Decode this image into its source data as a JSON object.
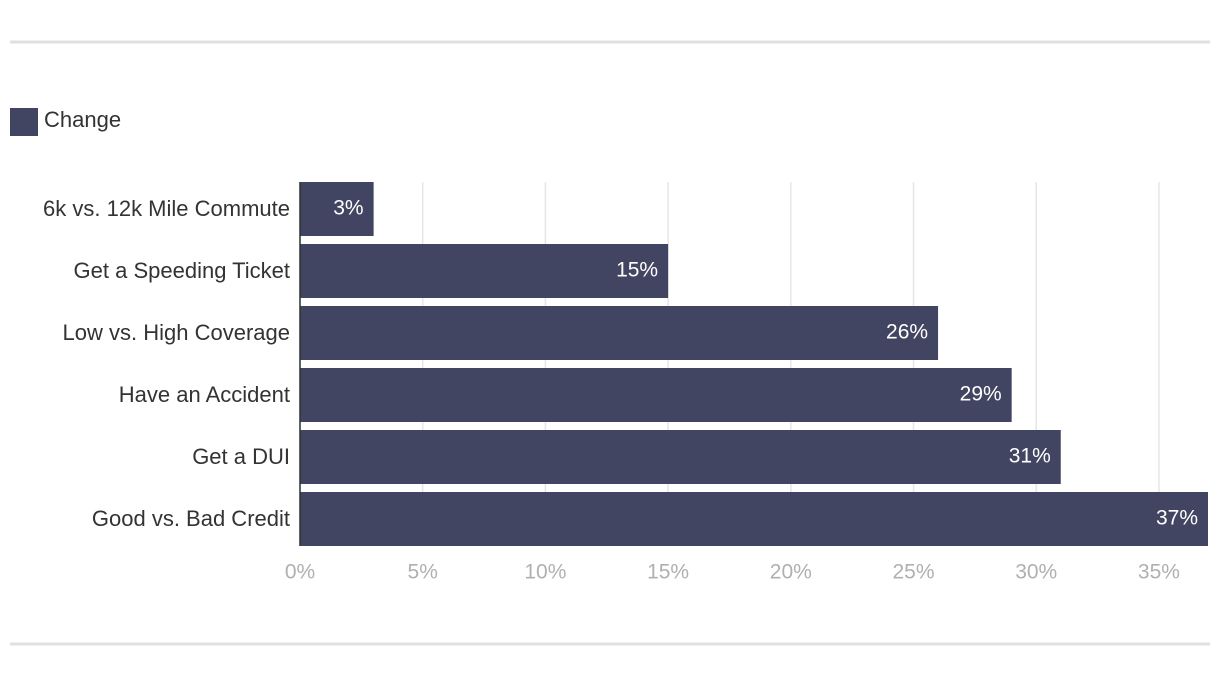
{
  "chart_data": {
    "type": "bar",
    "orientation": "horizontal",
    "categories": [
      "6k vs. 12k Mile Commute",
      "Get a Speeding Ticket",
      "Low vs. High Coverage",
      "Have an Accident",
      "Get a DUI",
      "Good vs. Bad Credit"
    ],
    "series": [
      {
        "name": "Change",
        "color": "#424562",
        "values": [
          3,
          15,
          26,
          29,
          31,
          37
        ],
        "value_labels": [
          "3%",
          "15%",
          "26%",
          "29%",
          "31%",
          "37%"
        ]
      }
    ],
    "xlim": [
      0,
      37
    ],
    "xticks": [
      {
        "value": 0,
        "label": "0%"
      },
      {
        "value": 5,
        "label": "5%"
      },
      {
        "value": 10,
        "label": "10%"
      },
      {
        "value": 15,
        "label": "15%"
      },
      {
        "value": 20,
        "label": "20%"
      },
      {
        "value": 25,
        "label": "25%"
      },
      {
        "value": 30,
        "label": "30%"
      },
      {
        "value": 35,
        "label": "35%"
      }
    ],
    "grid": true,
    "legend": "top-left"
  }
}
